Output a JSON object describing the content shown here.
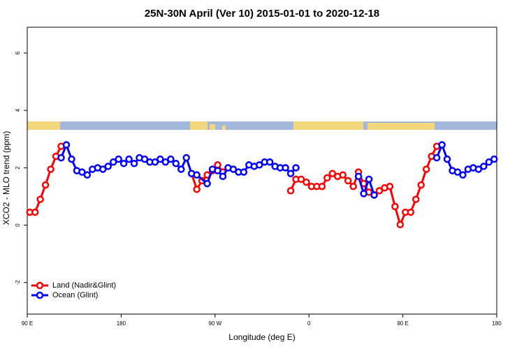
{
  "chart_data": {
    "type": "line",
    "title": "25N-30N April (Ver 10)   2015-01-01 to 2020-12-18",
    "x_label": "Longitude (deg E)",
    "y_label": "XCO2 - MLO trend (ppm)",
    "xlim": [
      90,
      540
    ],
    "ylim": [
      -3.1,
      6.9
    ],
    "xticks": [
      {
        "value": 90,
        "label": "90 E"
      },
      180,
      {
        "value": 270,
        "label": "90 W"
      },
      {
        "value": 360,
        "label": "0"
      },
      {
        "value": 450,
        "label": "90 E"
      },
      {
        "value": 540,
        "label": "180"
      }
    ],
    "yticks": [
      -2,
      0,
      2,
      4,
      6
    ],
    "legend": "bottomleft",
    "series": [
      {
        "name": "Land (Nadir&Glint)",
        "color": "#ff0000",
        "x": [
          92.5,
          97.5,
          102.5,
          107.5,
          112.5,
          117.5,
          122.5,
          127.5,
          247.5,
          252.5,
          257.5,
          262.5,
          267.5,
          272.5,
          277.5,
          282.5,
          342.5,
          347.5,
          352.5,
          357.5,
          362.5,
          367.5,
          372.5,
          377.5,
          382.5,
          387.5,
          392.5,
          397.5,
          402.5,
          407.5,
          412.5,
          417.5,
          422.5,
          427.5,
          432.5,
          437.5,
          442.5,
          447.5,
          452.5,
          457.5,
          462.5,
          467.5,
          472.5,
          477.5,
          482.5
        ],
        "values": [
          0.45,
          0.45,
          0.9,
          1.4,
          1.95,
          2.4,
          2.75,
          null,
          1.8,
          1.25,
          1.55,
          1.75,
          1.9,
          2.1,
          1.85,
          null,
          1.2,
          1.6,
          1.6,
          1.5,
          1.35,
          1.35,
          1.35,
          1.65,
          1.8,
          1.7,
          1.75,
          1.55,
          1.35,
          1.85,
          1.45,
          1.15,
          1.05,
          1.2,
          1.3,
          1.35,
          0.65,
          0.02,
          0.45,
          0.45,
          0.9,
          1.4,
          1.95,
          2.4,
          2.75
        ]
      },
      {
        "name": "Ocean (Glint)",
        "color": "#0000ff",
        "x": [
          122.5,
          127.5,
          132.5,
          137.5,
          142.5,
          147.5,
          152.5,
          157.5,
          162.5,
          167.5,
          172.5,
          177.5,
          182.5,
          187.5,
          192.5,
          197.5,
          202.5,
          207.5,
          212.5,
          217.5,
          222.5,
          227.5,
          232.5,
          237.5,
          242.5,
          247.5,
          252.5,
          262.5,
          267.5,
          272.5,
          277.5,
          282.5,
          287.5,
          292.5,
          297.5,
          302.5,
          307.5,
          312.5,
          317.5,
          322.5,
          327.5,
          332.5,
          337.5,
          342.5,
          347.5,
          352.5,
          407.5,
          412.5,
          417.5,
          422.5,
          427.5,
          482.5,
          487.5,
          492.5,
          497.5,
          502.5,
          507.5,
          512.5,
          517.5,
          522.5,
          527.5,
          532.5,
          537.5
        ],
        "values": [
          2.35,
          2.8,
          2.3,
          1.9,
          1.85,
          1.75,
          1.95,
          2.0,
          1.95,
          2.05,
          2.2,
          2.3,
          2.15,
          2.3,
          2.15,
          2.35,
          2.3,
          2.2,
          2.2,
          2.3,
          2.2,
          2.3,
          2.15,
          1.95,
          2.35,
          1.8,
          1.75,
          1.45,
          1.95,
          1.9,
          1.7,
          2.0,
          1.95,
          1.85,
          1.85,
          2.1,
          2.05,
          2.1,
          2.2,
          2.2,
          2.05,
          2.0,
          2.0,
          1.8,
          2.0,
          null,
          1.7,
          1.1,
          1.6,
          1.05,
          null,
          2.35,
          2.8,
          2.3,
          1.9,
          1.85,
          1.75,
          1.95,
          2.0,
          1.95,
          2.05,
          2.2,
          2.3
        ]
      }
    ]
  }
}
